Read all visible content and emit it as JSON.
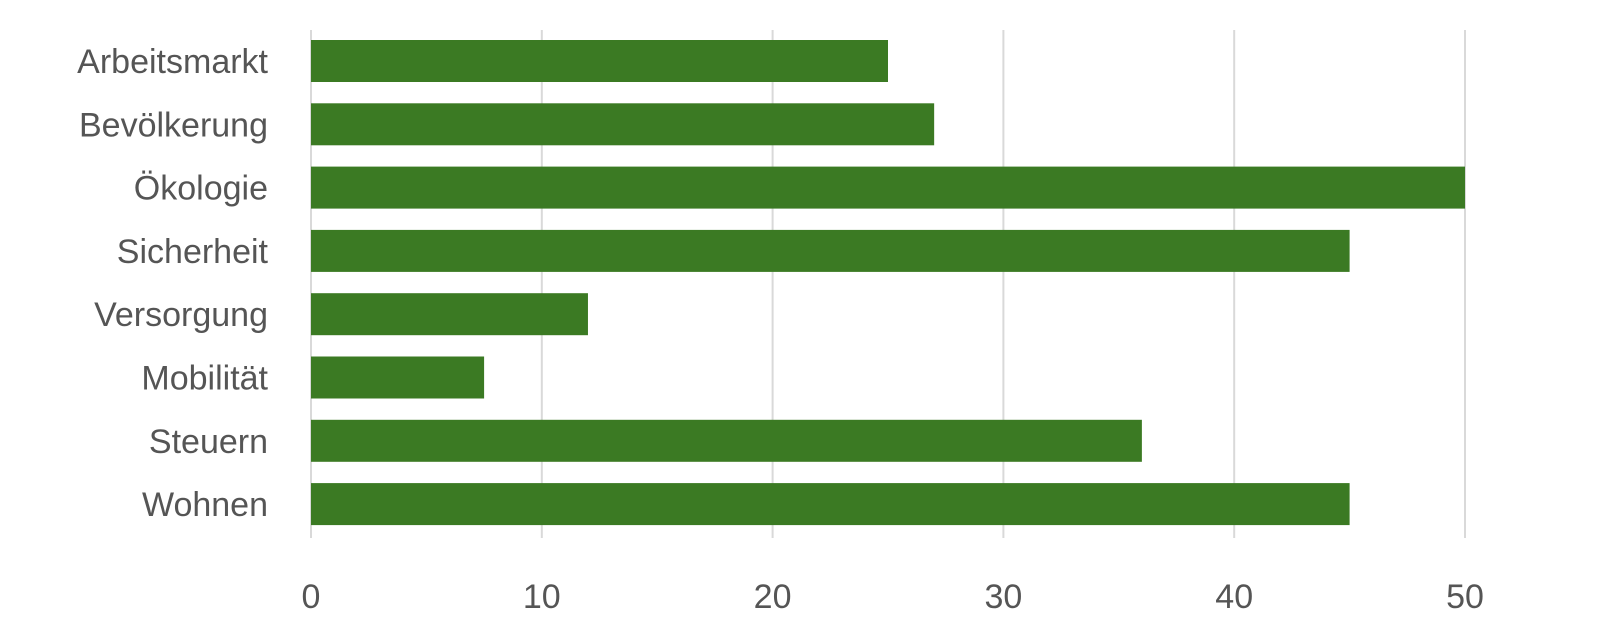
{
  "chart_data": {
    "type": "bar",
    "orientation": "horizontal",
    "categories": [
      "Arbeitsmarkt",
      "Bevölkerung",
      "Ökologie",
      "Sicherheit",
      "Versorgung",
      "Mobilität",
      "Steuern",
      "Wohnen"
    ],
    "values": [
      25,
      27,
      50,
      45,
      12,
      7.5,
      36,
      45
    ],
    "title": "",
    "xlabel": "",
    "ylabel": "",
    "xlim": [
      0,
      50
    ],
    "xticks": [
      0,
      10,
      20,
      30,
      40,
      50
    ],
    "grid": "vertical",
    "legend": "none",
    "colors": {
      "bar": "#3b7a23",
      "grid": "#d9d9d9",
      "text": "#555555"
    }
  }
}
